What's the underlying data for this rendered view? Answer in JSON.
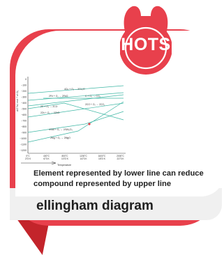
{
  "badge": {
    "label": "HOTS",
    "color": "#e8404c"
  },
  "chart": {
    "ylabel": "ΔG°/kJ mol⁻¹ of O₂",
    "xlabel": "Temperature",
    "yticks": [
      "0",
      "−100",
      "−200",
      "−300",
      "−400",
      "−500",
      "−600",
      "−700",
      "−800",
      "−900",
      "−1000",
      "−1100",
      "−1200"
    ],
    "xticks": [
      [
        "0°C",
        "273 K"
      ],
      [
        "400°C",
        "673 K"
      ],
      [
        "800°C",
        "1073 K"
      ],
      [
        "1200°C",
        "1473 K"
      ],
      [
        "1600°C",
        "1873 K"
      ],
      [
        "2000°C",
        "2273 K"
      ]
    ],
    "reactions": [
      "4Cu + O₂ → 2Cu₂O",
      "2Fe + O₂ → 2FeO",
      "C + O₂ → CO₂",
      "2CO + O₂ → 2CO₂",
      "2C + O₂ → 2CO",
      "2Zn + O₂ → 2ZnO",
      "4/3Al + O₂ → 2/3Al₂O₃",
      "2Mg + O₂ → 2MgO"
    ]
  },
  "statement": "Element represented by lower line can reduce compound represented by upper line",
  "caption": "ellingham diagram"
}
